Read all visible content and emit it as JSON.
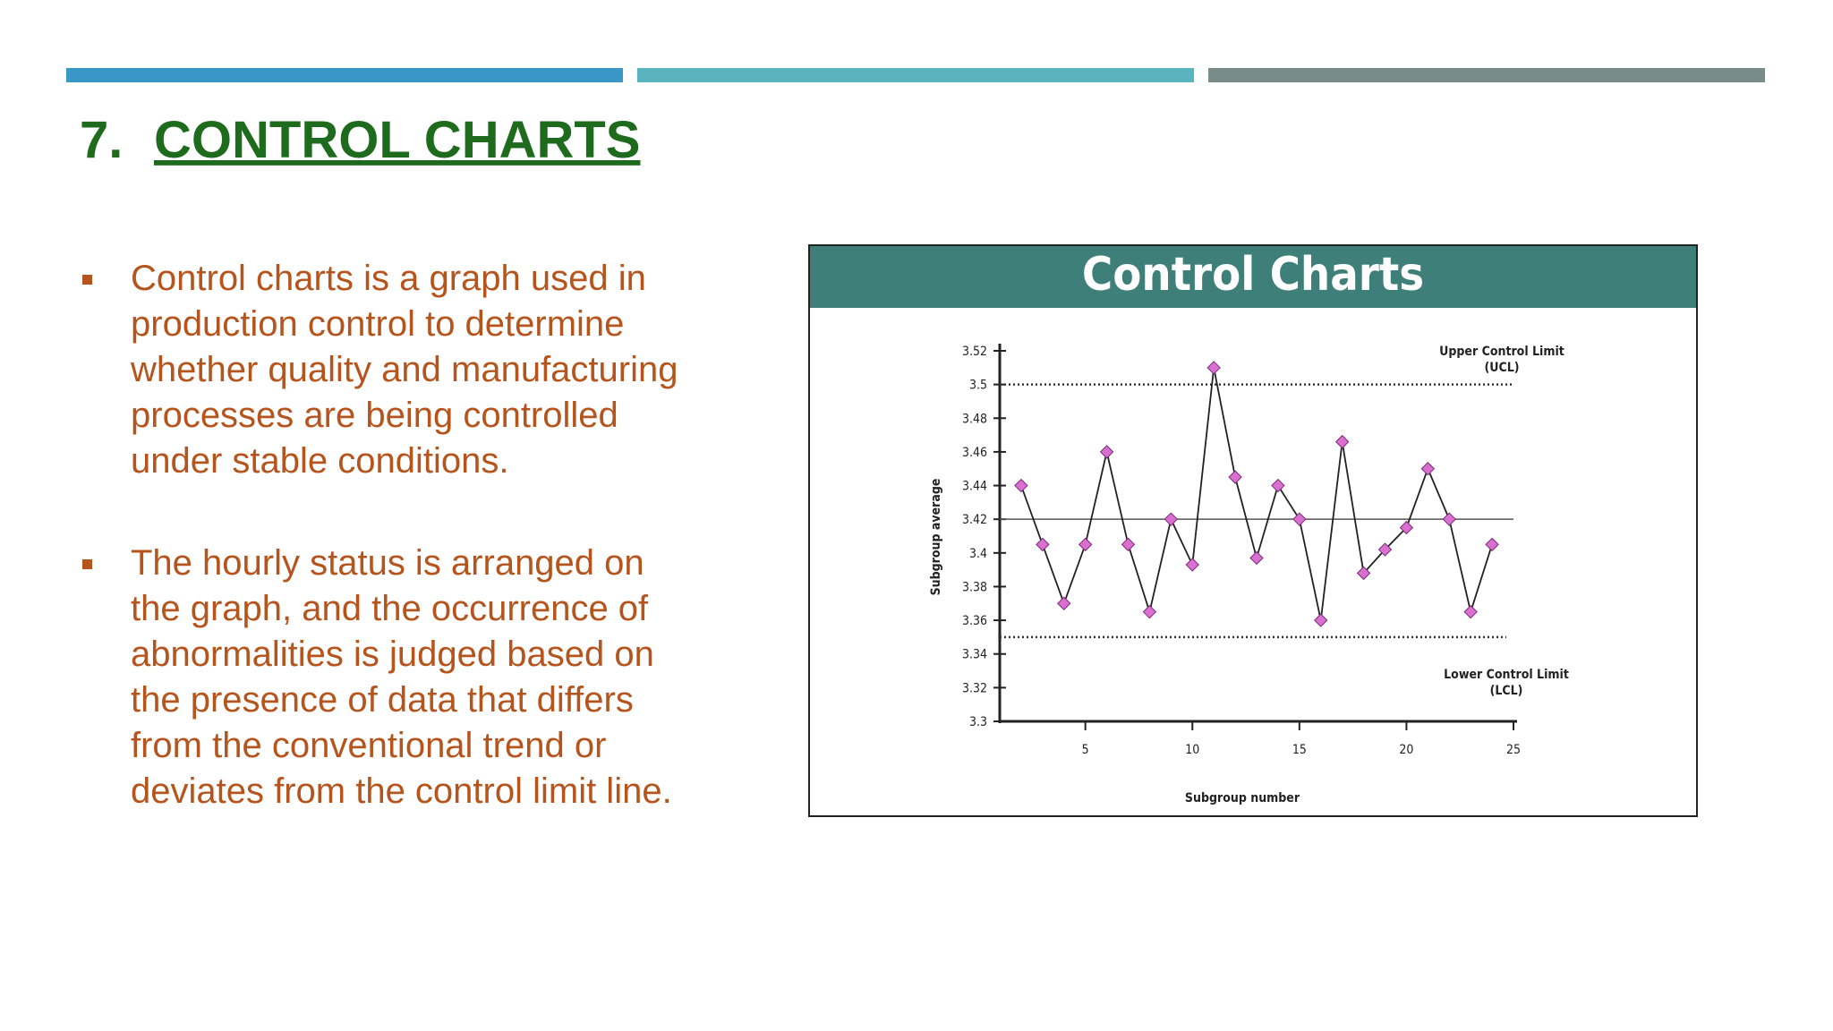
{
  "header": {
    "number": "7.",
    "title": "CONTROL CHARTS"
  },
  "bullets": [
    [
      "Control charts is a graph used in",
      "production control to determine",
      "whether quality and manufacturing",
      "processes are being controlled",
      "under stable conditions."
    ],
    [
      "The hourly status is arranged on",
      "the graph, and the occurrence of",
      "abnormalities is judged based on",
      "the presence of data that differs",
      "from the conventional trend or",
      "deviates from the control limit line."
    ]
  ],
  "chart_data": {
    "type": "line",
    "title": "Control Charts",
    "x_label": "Subgroup number",
    "y_label": "Subgroup average",
    "x": [
      2,
      3,
      4,
      5,
      6,
      7,
      8,
      9,
      10,
      11,
      12,
      13,
      14,
      15,
      16,
      17,
      18,
      19,
      20,
      21,
      22,
      23,
      24
    ],
    "values": [
      3.44,
      3.405,
      3.37,
      3.405,
      3.46,
      3.405,
      3.365,
      3.42,
      3.393,
      3.51,
      3.445,
      3.397,
      3.44,
      3.42,
      3.36,
      3.466,
      3.388,
      3.402,
      3.415,
      3.45,
      3.42,
      3.365,
      3.405
    ],
    "color": "#222222",
    "marker_color": "#d970d0",
    "center": 3.42,
    "ucl": 3.5,
    "lcl": 3.35,
    "ucl_label": [
      "Upper Control Limit",
      "(UCL)"
    ],
    "lcl_label": [
      "Lower Control Limit",
      "(LCL)"
    ],
    "xlim": [
      1,
      25
    ],
    "xticks": [
      5,
      10,
      15,
      20,
      25
    ],
    "ylim": [
      3.3,
      3.52
    ],
    "yticks": [
      3.3,
      3.32,
      3.34,
      3.36,
      3.38,
      3.4,
      3.42,
      3.44,
      3.46,
      3.48,
      3.5,
      3.52
    ]
  }
}
